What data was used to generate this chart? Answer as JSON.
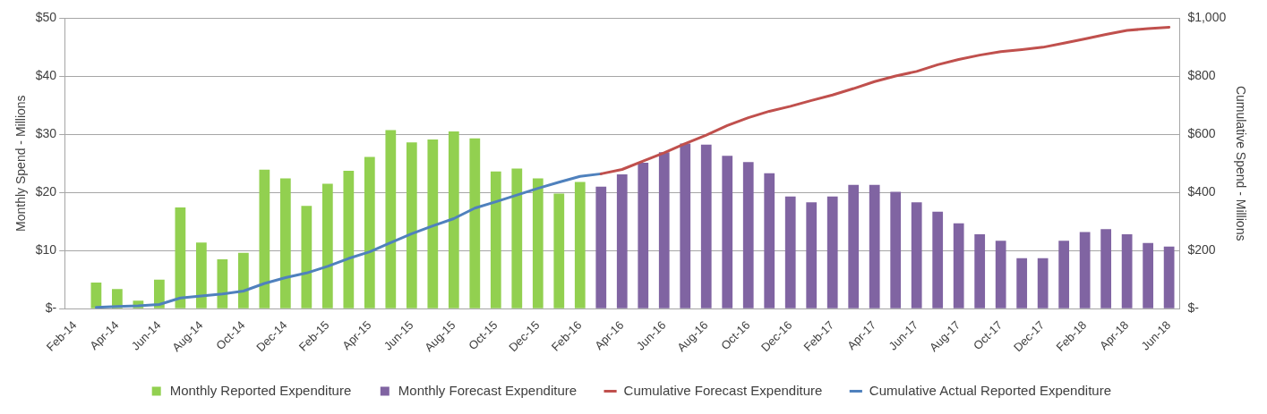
{
  "chart_data": {
    "type": "bar",
    "categories": [
      "Feb-14",
      null,
      "Apr-14",
      null,
      "Jun-14",
      null,
      "Aug-14",
      null,
      "Oct-14",
      null,
      "Dec-14",
      null,
      "Feb-15",
      null,
      "Apr-15",
      null,
      "Jun-15",
      null,
      "Aug-15",
      null,
      "Oct-15",
      null,
      "Dec-15",
      null,
      "Feb-16",
      null,
      "Apr-16",
      null,
      "Jun-16",
      null,
      "Aug-16",
      null,
      "Oct-16",
      null,
      "Dec-16",
      null,
      "Feb-17",
      null,
      "Apr-17",
      null,
      "Jun-17",
      null,
      "Aug-17",
      null,
      "Oct-17",
      null,
      "Dec-17",
      null,
      "Feb-18",
      null,
      "Apr-18",
      null,
      "Jun-18"
    ],
    "series": [
      {
        "name": "Monthly Reported Expenditure",
        "color": "#92d050",
        "values": [
          null,
          4.5,
          3.4,
          1.4,
          5.0,
          17.4,
          11.4,
          8.5,
          9.6,
          23.9,
          22.4,
          17.7,
          21.5,
          23.7,
          26.1,
          30.7,
          28.6,
          29.1,
          30.5,
          29.3,
          23.6,
          24.1,
          22.4,
          19.8,
          21.8,
          null,
          null,
          null,
          null,
          null,
          null,
          null,
          null,
          null,
          null,
          null,
          null,
          null,
          null,
          null,
          null,
          null,
          null,
          null,
          null,
          null,
          null,
          null,
          null,
          null,
          null,
          null,
          null
        ]
      },
      {
        "name": "Monthly Forecast Expenditure",
        "color": "#8064a2",
        "values": [
          null,
          null,
          null,
          null,
          null,
          null,
          null,
          null,
          null,
          null,
          null,
          null,
          null,
          null,
          null,
          null,
          null,
          null,
          null,
          null,
          null,
          null,
          null,
          null,
          null,
          21.0,
          23.1,
          25.1,
          26.9,
          28.4,
          28.2,
          26.3,
          25.2,
          23.3,
          19.3,
          18.3,
          19.3,
          21.3,
          21.3,
          20.1,
          18.3,
          16.7,
          14.7,
          12.8,
          11.7,
          8.7,
          8.7,
          11.7,
          13.2,
          13.7,
          12.8,
          11.3,
          10.7
        ]
      },
      {
        "name": "Cumulative Forecast Expenditure",
        "type": "line",
        "axis": "y2",
        "color": "#c0504d",
        "values": [
          null,
          null,
          null,
          null,
          null,
          null,
          null,
          null,
          null,
          null,
          null,
          null,
          null,
          null,
          null,
          null,
          null,
          null,
          null,
          null,
          null,
          null,
          null,
          null,
          null,
          464,
          479,
          508,
          536,
          568,
          597,
          630,
          657,
          679,
          696,
          716,
          735,
          757,
          781,
          800,
          816,
          839,
          857,
          872,
          884,
          891,
          899,
          913,
          928,
          943,
          957,
          963,
          968
        ]
      },
      {
        "name": "Cumulative Actual Reported Expenditure",
        "type": "line",
        "axis": "y2",
        "color": "#4f81bd",
        "values": [
          null,
          5,
          8,
          10,
          15,
          37,
          44,
          51,
          61,
          87,
          107,
          123,
          146,
          173,
          196,
          227,
          258,
          285,
          310,
          346,
          368,
          391,
          414,
          435,
          455,
          464,
          null,
          null,
          null,
          null,
          null,
          null,
          null,
          null,
          null,
          null,
          null,
          null,
          null,
          null,
          null,
          null,
          null,
          null,
          null,
          null,
          null,
          null,
          null,
          null,
          null,
          null,
          null
        ]
      }
    ],
    "ylabel": "Monthly Spend - Millions",
    "y2label": "Cumulative Spend - Millions",
    "ylim": [
      0,
      50
    ],
    "yticks": [
      {
        "value": 0,
        "label": "$-"
      },
      {
        "value": 10,
        "label": "$10"
      },
      {
        "value": 20,
        "label": "$20"
      },
      {
        "value": 30,
        "label": "$30"
      },
      {
        "value": 40,
        "label": "$40"
      },
      {
        "value": 50,
        "label": "$50"
      }
    ],
    "y2lim": [
      0,
      1000
    ],
    "y2ticks": [
      {
        "value": 0,
        "label": "$-"
      },
      {
        "value": 200,
        "label": "$200"
      },
      {
        "value": 400,
        "label": "$400"
      },
      {
        "value": 600,
        "label": "$600"
      },
      {
        "value": 800,
        "label": "$800"
      },
      {
        "value": 1000,
        "label": "$1,000"
      }
    ],
    "grid": "y",
    "legend": "bottom",
    "marker": "none",
    "line_style": "solid"
  }
}
